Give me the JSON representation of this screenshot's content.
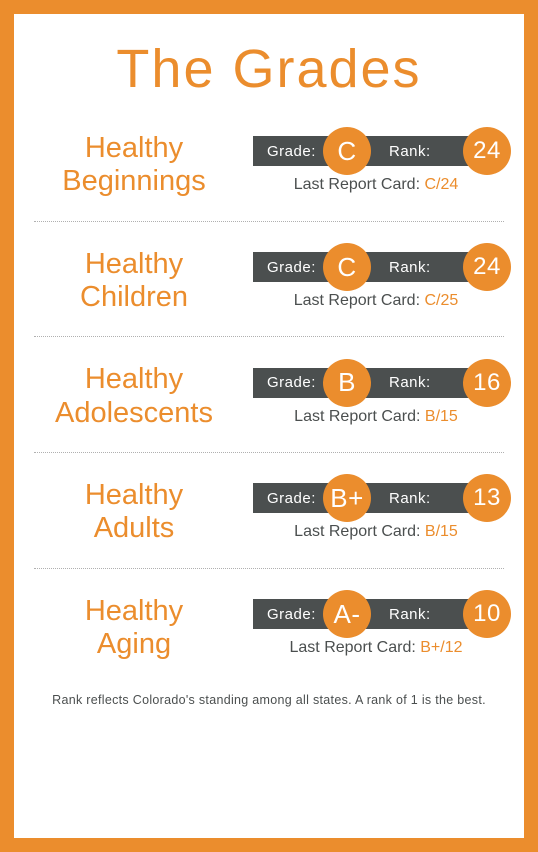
{
  "colors": {
    "frame": "#eb8d2d",
    "accent": "#eb8d2d",
    "pill_bg": "#4b4f4f",
    "muted": "#4b4f4f",
    "background": "#ffffff"
  },
  "typography": {
    "title_fontsize": 54,
    "category_fontsize": 29,
    "pill_label_fontsize": 15,
    "circle_grade_fontsize": 26,
    "circle_rank_fontsize": 24,
    "last_fontsize": 16,
    "footnote_fontsize": 12.5,
    "font_family": "Century Gothic / Futura"
  },
  "title": "The Grades",
  "labels": {
    "grade": "Grade:",
    "rank": "Rank:",
    "last_prefix": "Last Report Card: "
  },
  "rows": [
    {
      "category_line1": "Healthy",
      "category_line2": "Beginnings",
      "grade": "C",
      "rank": "24",
      "last_value": "C/24"
    },
    {
      "category_line1": "Healthy",
      "category_line2": "Children",
      "grade": "C",
      "rank": "24",
      "last_value": "C/25"
    },
    {
      "category_line1": "Healthy",
      "category_line2": "Adolescents",
      "grade": "B",
      "rank": "16",
      "last_value": "B/15"
    },
    {
      "category_line1": "Healthy",
      "category_line2": "Adults",
      "grade": "B+",
      "rank": "13",
      "last_value": "B/15"
    },
    {
      "category_line1": "Healthy",
      "category_line2": "Aging",
      "grade": "A-",
      "rank": "10",
      "last_value": "B+/12"
    }
  ],
  "footnote": "Rank reflects Colorado's standing among all states. A rank of 1 is the best."
}
